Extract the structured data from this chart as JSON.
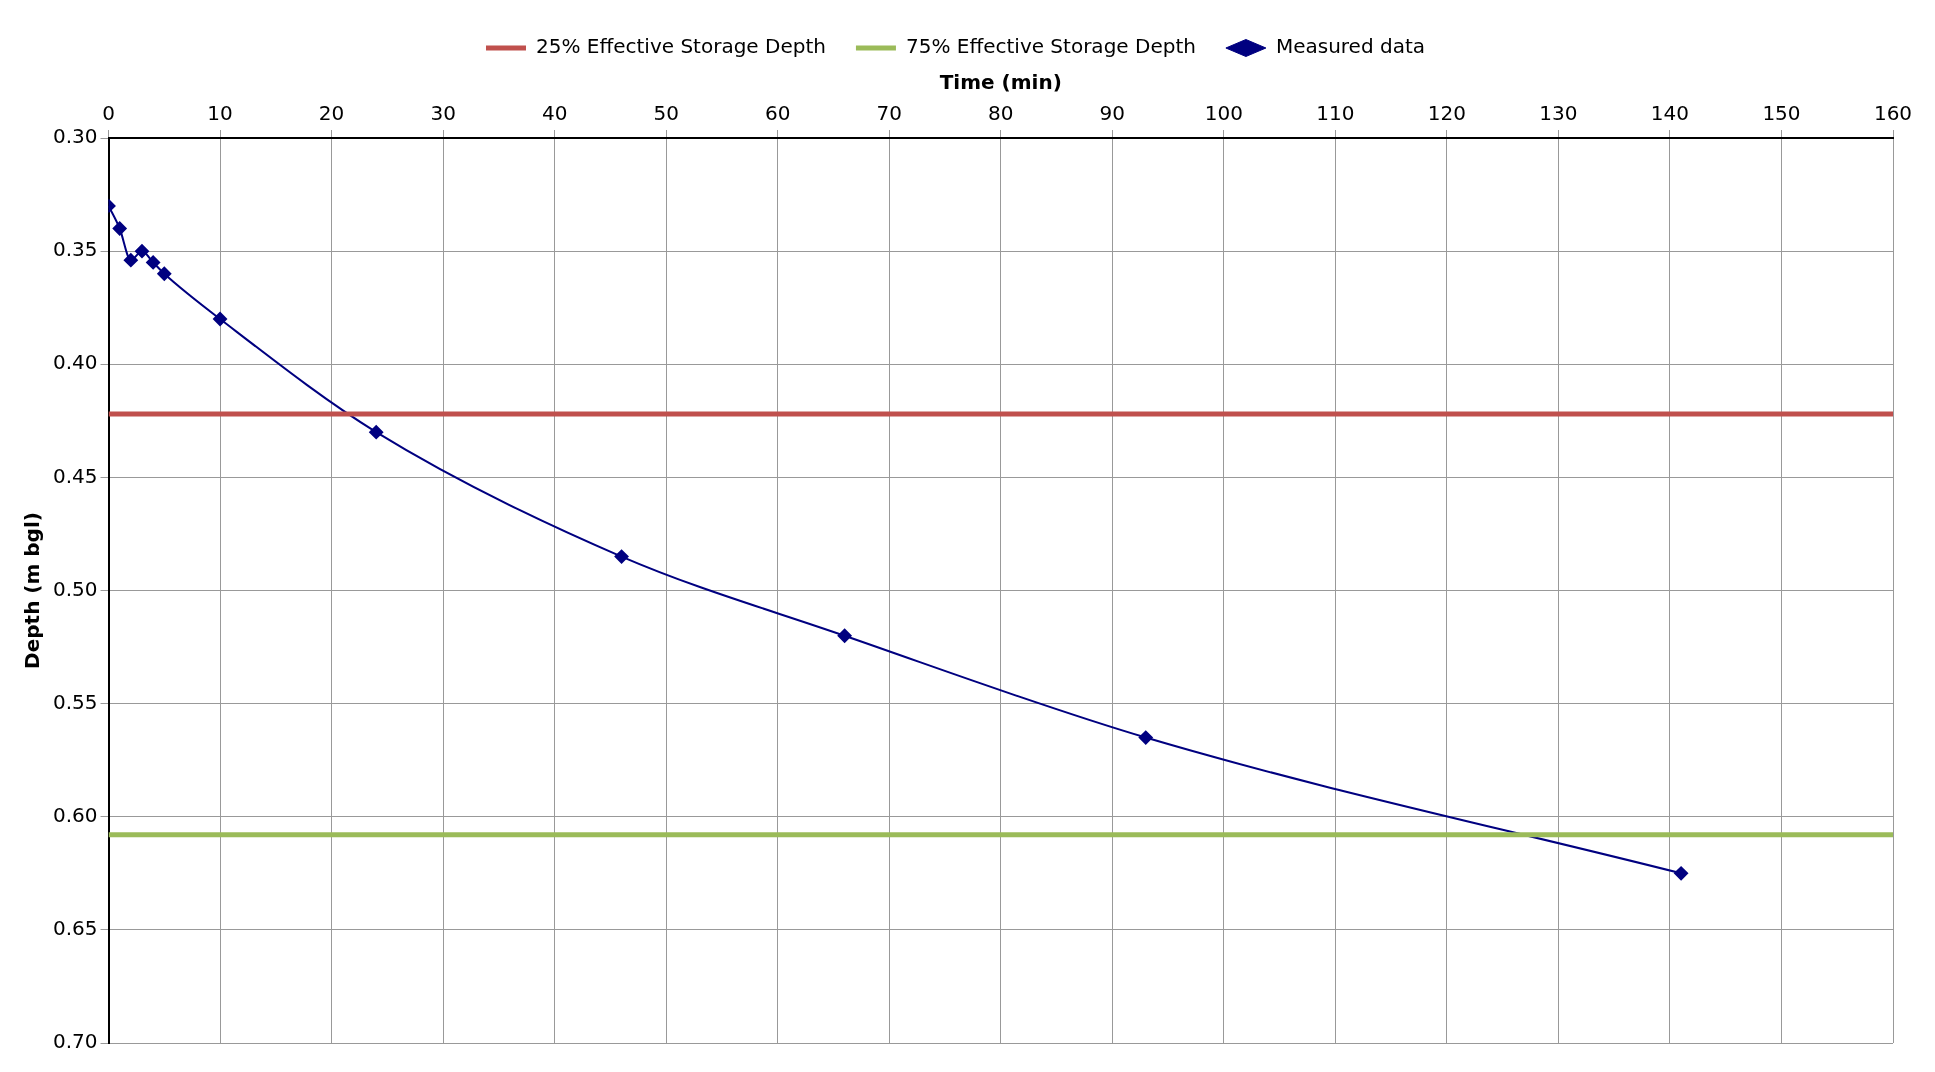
{
  "chart_data": {
    "type": "line",
    "xlabel": "Time (min)",
    "ylabel": "Depth (m bgl)",
    "xlim": [
      0,
      160
    ],
    "xticks": [
      0,
      10,
      20,
      30,
      40,
      50,
      60,
      70,
      80,
      90,
      100,
      110,
      120,
      130,
      140,
      150,
      160
    ],
    "ylim": [
      0.7,
      0.3
    ],
    "yticks": [
      {
        "value": 0.3,
        "label": "0.30"
      },
      {
        "value": 0.35,
        "label": "0.35"
      },
      {
        "value": 0.4,
        "label": "0.40"
      },
      {
        "value": 0.45,
        "label": "0.45"
      },
      {
        "value": 0.5,
        "label": "0.50"
      },
      {
        "value": 0.55,
        "label": "0.55"
      },
      {
        "value": 0.6,
        "label": "0.60"
      },
      {
        "value": 0.65,
        "label": "0.65"
      },
      {
        "value": 0.7,
        "label": "0.70"
      }
    ],
    "grid": true,
    "legend": "top",
    "series": [
      {
        "name": "25% Effective Storage Depth",
        "color": "#c0504d",
        "x": [
          0,
          160
        ],
        "values": [
          0.422,
          0.422
        ],
        "marker": "none"
      },
      {
        "name": "75% Effective Storage Depth",
        "color": "#9bbb59",
        "x": [
          0,
          160
        ],
        "values": [
          0.608,
          0.608
        ],
        "marker": "none"
      },
      {
        "name": "Measured data",
        "color": "#000080",
        "x": [
          0,
          1,
          2,
          3,
          4,
          5,
          10,
          24,
          46,
          66,
          93,
          141
        ],
        "values": [
          0.33,
          0.34,
          0.354,
          0.35,
          0.355,
          0.36,
          0.38,
          0.43,
          0.485,
          0.52,
          0.565,
          0.625
        ],
        "marker": "diamond"
      }
    ]
  }
}
